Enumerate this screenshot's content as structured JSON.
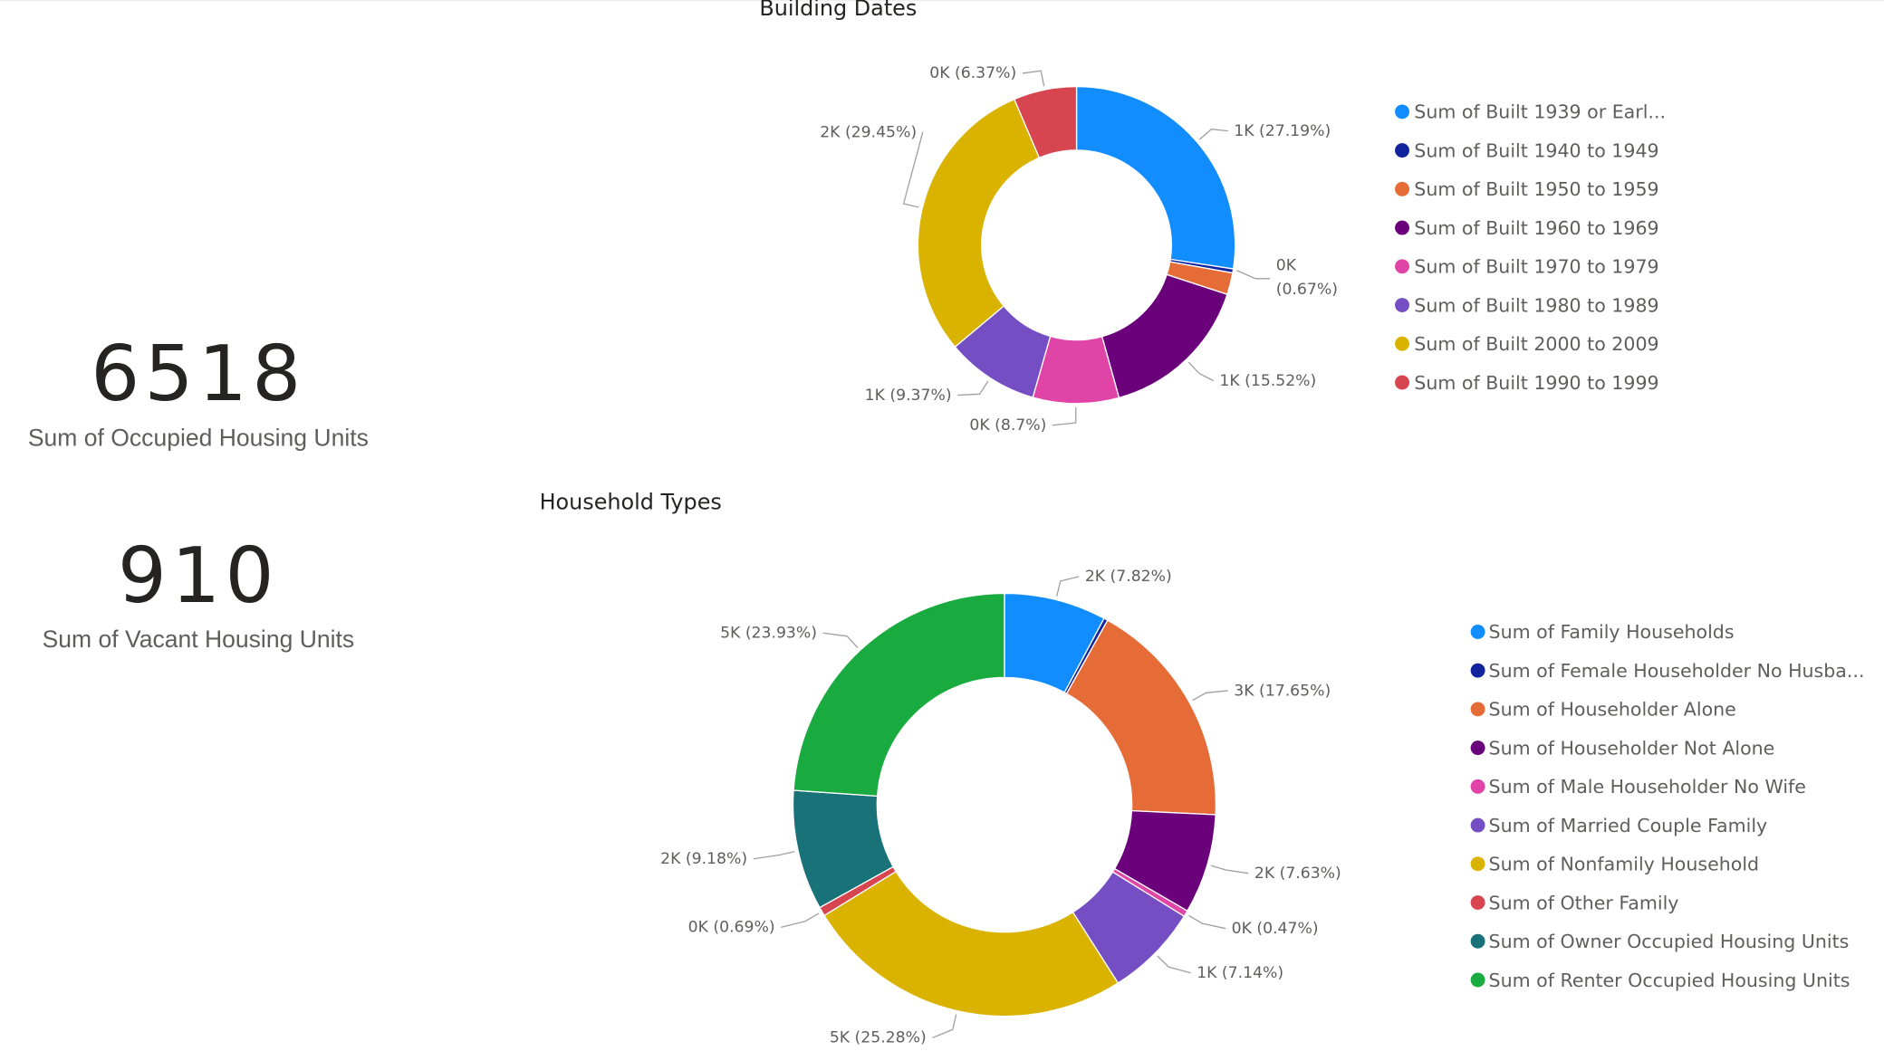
{
  "kpis": [
    {
      "value": "6518",
      "label": "Sum of Occupied Housing Units"
    },
    {
      "value": "910",
      "label": "Sum of Vacant Housing Units"
    }
  ],
  "chart_data": [
    {
      "type": "donut",
      "title": "Building Dates",
      "legend_position": "right",
      "series": [
        {
          "name": "Sum of Built 1939 or Earl...",
          "percent": 27.19,
          "label": "1K (27.19%)",
          "color": "#118DFF"
        },
        {
          "name": "Sum of Built 1940 to 1949",
          "percent": 0.41,
          "label": "",
          "color": "#12239E"
        },
        {
          "name": "Sum of Built 1950 to 1959",
          "percent": 2.2,
          "label": "",
          "color": "#E66C37"
        },
        {
          "name": "Sum of Built 1960 to 1969",
          "percent": 15.52,
          "label": "1K (15.52%)",
          "color": "#6B007B"
        },
        {
          "name": "Sum of Built 1970 to 1979",
          "percent": 8.7,
          "label": "0K (8.7%)",
          "color": "#E044A7"
        },
        {
          "name": "Sum of Built 1980 to 1989",
          "percent": 9.37,
          "label": "1K (9.37%)",
          "color": "#744EC2"
        },
        {
          "name": "Sum of Built 2000 to 2009",
          "percent": 29.45,
          "label": "2K (29.45%)",
          "color": "#D9B300"
        },
        {
          "name": "Sum of Built 1990 to 1999",
          "percent": 6.37,
          "label": "0K (6.37%)",
          "color": "#D64550"
        }
      ],
      "extra_labels": [
        "0K",
        "(0.67%)"
      ]
    },
    {
      "type": "donut",
      "title": "Household Types",
      "legend_position": "right",
      "series": [
        {
          "name": "Sum of Family Households",
          "percent": 7.82,
          "label": "2K (7.82%)",
          "color": "#118DFF"
        },
        {
          "name": "Sum of Female Householder No Husba...",
          "percent": 0.3,
          "label": "",
          "color": "#12239E"
        },
        {
          "name": "Sum of Householder Alone",
          "percent": 17.65,
          "label": "3K (17.65%)",
          "color": "#E66C37"
        },
        {
          "name": "Sum of Householder Not Alone",
          "percent": 7.63,
          "label": "2K (7.63%)",
          "color": "#6B007B"
        },
        {
          "name": "Sum of Male Householder No Wife",
          "percent": 0.47,
          "label": "0K (0.47%)",
          "color": "#E044A7"
        },
        {
          "name": "Sum of Married Couple Family",
          "percent": 7.14,
          "label": "1K (7.14%)",
          "color": "#744EC2"
        },
        {
          "name": "Sum of Nonfamily Household",
          "percent": 25.28,
          "label": "5K (25.28%)",
          "color": "#D9B300"
        },
        {
          "name": "Sum of Other Family",
          "percent": 0.69,
          "label": "0K (0.69%)",
          "color": "#D64550"
        },
        {
          "name": "Sum of Owner Occupied Housing Units",
          "percent": 9.18,
          "label": "2K (9.18%)",
          "color": "#197278"
        },
        {
          "name": "Sum of Renter Occupied Housing Units",
          "percent": 23.93,
          "label": "5K (23.93%)",
          "color": "#1AAB40"
        }
      ]
    }
  ]
}
